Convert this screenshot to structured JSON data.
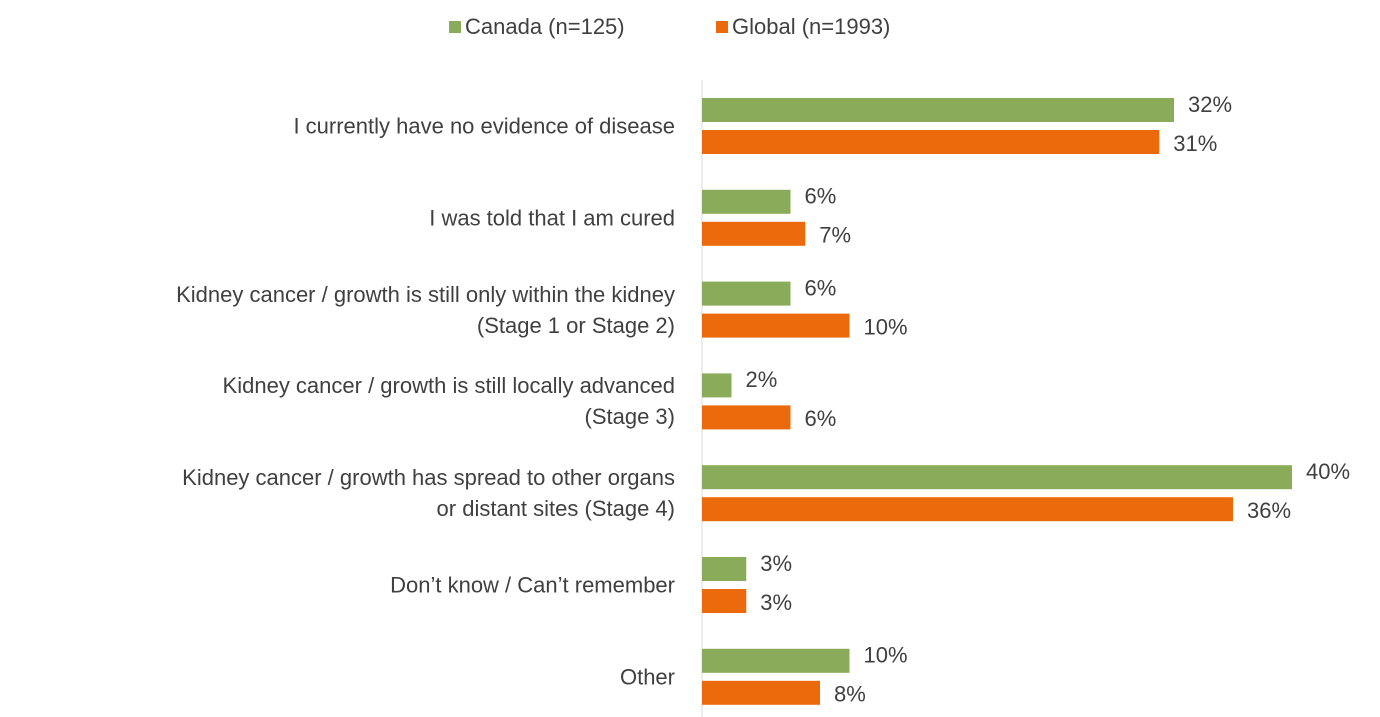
{
  "chart_data": {
    "type": "hbar",
    "categories": [
      "I currently have no evidence of disease",
      "I was told that I am cured",
      "Kidney cancer / growth is still only within the kidney\n(Stage 1 or Stage 2)",
      "Kidney cancer / growth is still locally advanced\n(Stage 3)",
      "Kidney cancer / growth has spread to other organs\nor distant sites (Stage 4)",
      "Don’t know / Can’t remember",
      "Other"
    ],
    "series": [
      {
        "name": "Canada (n=125)",
        "color": "#8aab5a",
        "values": [
          32,
          6,
          6,
          2,
          40,
          3,
          10
        ],
        "value_labels": [
          "32%",
          "6%",
          "6%",
          "2%",
          "40%",
          "3%",
          "10%"
        ]
      },
      {
        "name": "Global (n=1993)",
        "color": "#eb6b0c",
        "values": [
          31,
          7,
          10,
          6,
          36,
          3,
          8
        ],
        "value_labels": [
          "31%",
          "7%",
          "10%",
          "6%",
          "36%",
          "3%",
          "8%"
        ]
      }
    ],
    "xlim": [
      0,
      40
    ],
    "legend": "top"
  }
}
